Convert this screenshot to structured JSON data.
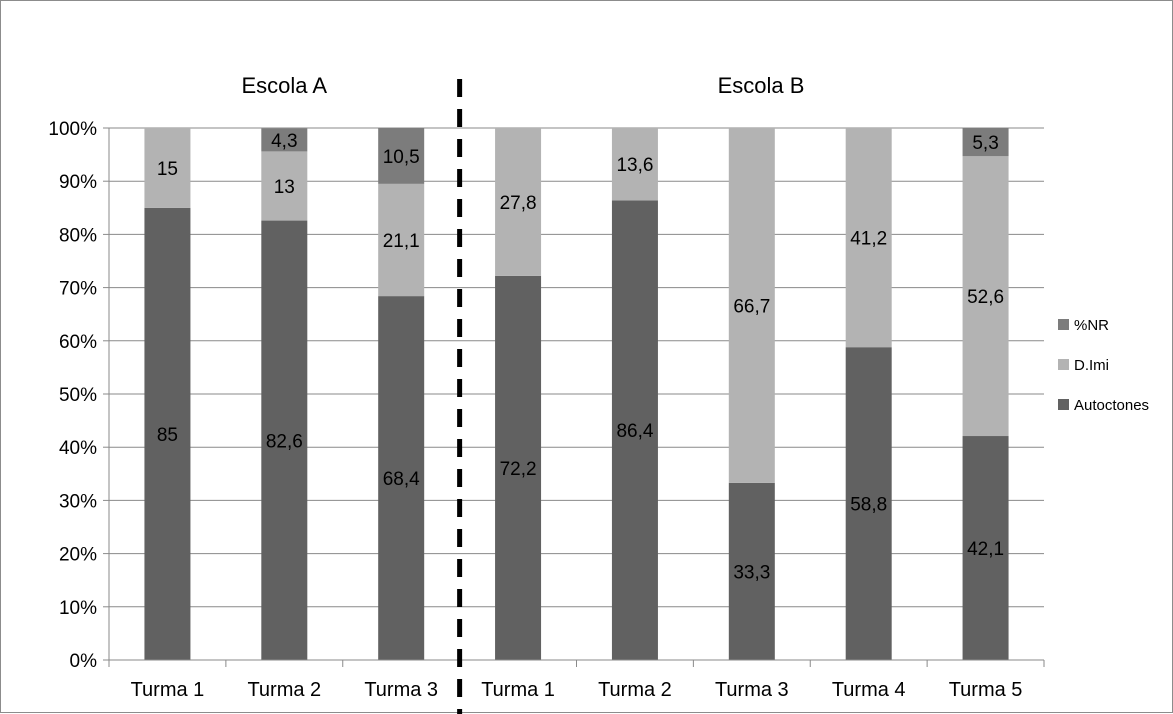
{
  "chart_data": {
    "type": "bar",
    "stacked": true,
    "percent_axis": true,
    "groups": [
      {
        "title": "Escola A",
        "categories": [
          "Turma 1",
          "Turma 2",
          "Turma 3"
        ]
      },
      {
        "title": "Escola B",
        "categories": [
          "Turma 1",
          "Turma 2",
          "Turma 3",
          "Turma 4",
          "Turma 5"
        ]
      }
    ],
    "categories": [
      "Turma 1",
      "Turma 2",
      "Turma 3",
      "Turma 1",
      "Turma 2",
      "Turma 3",
      "Turma 4",
      "Turma 5"
    ],
    "series": [
      {
        "name": "Autoctones",
        "color": "#616161",
        "values": [
          85,
          82.6,
          68.4,
          72.2,
          86.4,
          33.3,
          58.8,
          42.1
        ],
        "labels": [
          "85",
          "82,6",
          "68,4",
          "72,2",
          "86,4",
          "33,3",
          "58,8",
          "42,1"
        ]
      },
      {
        "name": "D.Imi",
        "color": "#b3b3b3",
        "values": [
          15,
          13,
          21.1,
          27.8,
          13.6,
          66.7,
          41.2,
          52.6
        ],
        "labels": [
          "15",
          "13",
          "21,1",
          "27,8",
          "13,6",
          "66,7",
          "41,2",
          "52,6"
        ]
      },
      {
        "name": "%NR",
        "color": "#7c7c7c",
        "values": [
          0,
          4.3,
          10.5,
          0,
          0,
          0,
          0,
          5.3
        ],
        "labels": [
          "",
          "4,3",
          "10,5",
          "",
          "",
          "",
          "",
          "5,3"
        ]
      }
    ],
    "y_ticks": [
      "0%",
      "10%",
      "20%",
      "30%",
      "40%",
      "50%",
      "60%",
      "70%",
      "80%",
      "90%",
      "100%"
    ],
    "ylim": [
      0,
      100
    ],
    "grid": true,
    "legend_position": "right",
    "separator": "dashed vertical line between groups"
  }
}
